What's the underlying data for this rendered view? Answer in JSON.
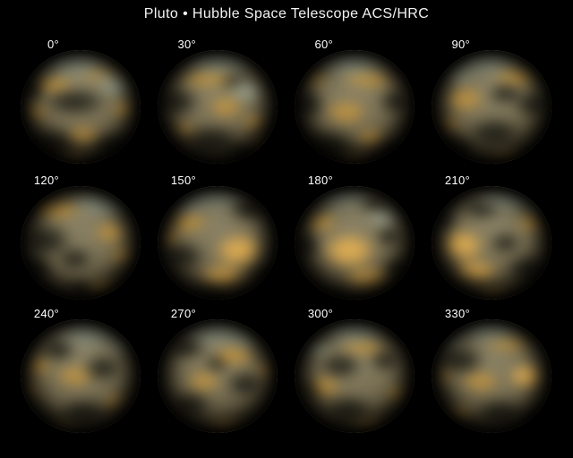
{
  "header": {
    "title": "Pluto • Hubble Space Telescope ACS/HRC"
  },
  "planets": [
    {
      "angle_label": "0°"
    },
    {
      "angle_label": "30°"
    },
    {
      "angle_label": "60°"
    },
    {
      "angle_label": "90°"
    },
    {
      "angle_label": "120°"
    },
    {
      "angle_label": "150°"
    },
    {
      "angle_label": "180°"
    },
    {
      "angle_label": "210°"
    },
    {
      "angle_label": "240°"
    },
    {
      "angle_label": "270°"
    },
    {
      "angle_label": "300°"
    },
    {
      "angle_label": "330°"
    }
  ],
  "palette": {
    "background": "#000000",
    "title_text": "#f2f2f2",
    "label_text": "#ffffff",
    "surface_base_light": "#8a8266",
    "surface_base_mid": "#6e6448",
    "surface_base_dark": "#4c422e",
    "pale_terrain": "#9aa08c",
    "orange_terrain": "#c3953f",
    "bright_gold_terrain": "#e0ae52",
    "dark_terrain": "#1c1c15"
  }
}
